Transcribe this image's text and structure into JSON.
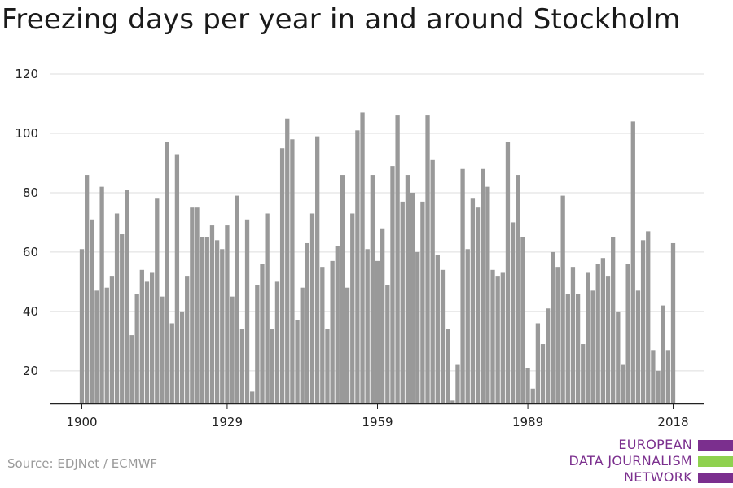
{
  "page": {
    "title": "Freezing days per year in and around Stockholm",
    "source": "Source: EDJNet / ECMWF"
  },
  "logo": {
    "lines": [
      "EUROPEAN",
      "DATA JOURNALISM",
      "NETWORK"
    ],
    "colors": {
      "purple": "#7b2f8e",
      "green": "#8fd14f"
    }
  },
  "chart_data": {
    "type": "bar",
    "x_start": 1900,
    "x": [
      1900,
      1901,
      1902,
      1903,
      1904,
      1905,
      1906,
      1907,
      1908,
      1909,
      1910,
      1911,
      1912,
      1913,
      1914,
      1915,
      1916,
      1917,
      1918,
      1919,
      1920,
      1921,
      1922,
      1923,
      1924,
      1925,
      1926,
      1927,
      1928,
      1929,
      1930,
      1931,
      1932,
      1933,
      1934,
      1935,
      1936,
      1937,
      1938,
      1939,
      1940,
      1941,
      1942,
      1943,
      1944,
      1945,
      1946,
      1947,
      1948,
      1949,
      1950,
      1951,
      1952,
      1953,
      1954,
      1955,
      1956,
      1957,
      1958,
      1959,
      1960,
      1961,
      1962,
      1963,
      1964,
      1965,
      1966,
      1967,
      1968,
      1969,
      1970,
      1971,
      1972,
      1973,
      1974,
      1975,
      1976,
      1977,
      1978,
      1979,
      1980,
      1981,
      1982,
      1983,
      1984,
      1985,
      1986,
      1987,
      1988,
      1989,
      1990,
      1991,
      1992,
      1993,
      1994,
      1995,
      1996,
      1997,
      1998,
      1999,
      2000,
      2001,
      2002,
      2003,
      2004,
      2005,
      2006,
      2007,
      2008,
      2009,
      2010,
      2011,
      2012,
      2013,
      2014,
      2015,
      2016,
      2017,
      2018
    ],
    "values": [
      61,
      86,
      71,
      47,
      82,
      48,
      52,
      73,
      66,
      81,
      32,
      46,
      54,
      50,
      53,
      78,
      45,
      97,
      36,
      93,
      40,
      52,
      75,
      75,
      65,
      65,
      69,
      64,
      61,
      69,
      45,
      79,
      34,
      71,
      13,
      49,
      56,
      73,
      34,
      50,
      95,
      105,
      98,
      37,
      48,
      63,
      73,
      99,
      55,
      34,
      57,
      62,
      86,
      48,
      73,
      101,
      107,
      61,
      86,
      57,
      68,
      49,
      89,
      106,
      77,
      86,
      80,
      60,
      77,
      106,
      91,
      59,
      54,
      34,
      10,
      22,
      88,
      61,
      78,
      75,
      88,
      82,
      54,
      52,
      53,
      97,
      70,
      86,
      65,
      21,
      14,
      36,
      29,
      41,
      60,
      55,
      79,
      46,
      55,
      46,
      29,
      53,
      47,
      56,
      58,
      52,
      65,
      40,
      22,
      56,
      104,
      47,
      64,
      67,
      27,
      20,
      42,
      27,
      63
    ],
    "xticks": [
      1900,
      1929,
      1959,
      1989,
      2018
    ],
    "yticks": [
      20,
      40,
      60,
      80,
      100,
      120
    ],
    "ylim": [
      9,
      120
    ],
    "bar_color": "#999999",
    "grid": true,
    "xlabel": "",
    "ylabel": ""
  }
}
